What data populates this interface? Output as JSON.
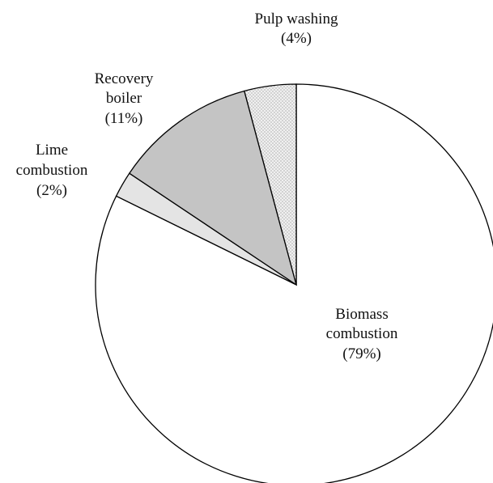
{
  "chart_data": {
    "type": "pie",
    "title": "",
    "start_angle_deg": 0,
    "direction": "clockwise",
    "slices": [
      {
        "label_lines": [
          "Biomass",
          "combustion",
          "(79%)"
        ],
        "value": 79,
        "fill": "#ffffff",
        "pattern": "none",
        "icon": "none"
      },
      {
        "label_lines": [
          "Lime",
          "combustion",
          "(2%)"
        ],
        "value": 2,
        "fill": "#e4e4e4",
        "pattern": "none",
        "icon": "none"
      },
      {
        "label_lines": [
          "Recovery",
          "boiler",
          "(11%)"
        ],
        "value": 11,
        "fill": "#c4c4c4",
        "pattern": "none",
        "icon": "none"
      },
      {
        "label_lines": [
          "Pulp washing",
          "(4%)"
        ],
        "value": 4,
        "fill": "#eeeeee",
        "pattern": "dots",
        "icon": "none"
      }
    ]
  }
}
